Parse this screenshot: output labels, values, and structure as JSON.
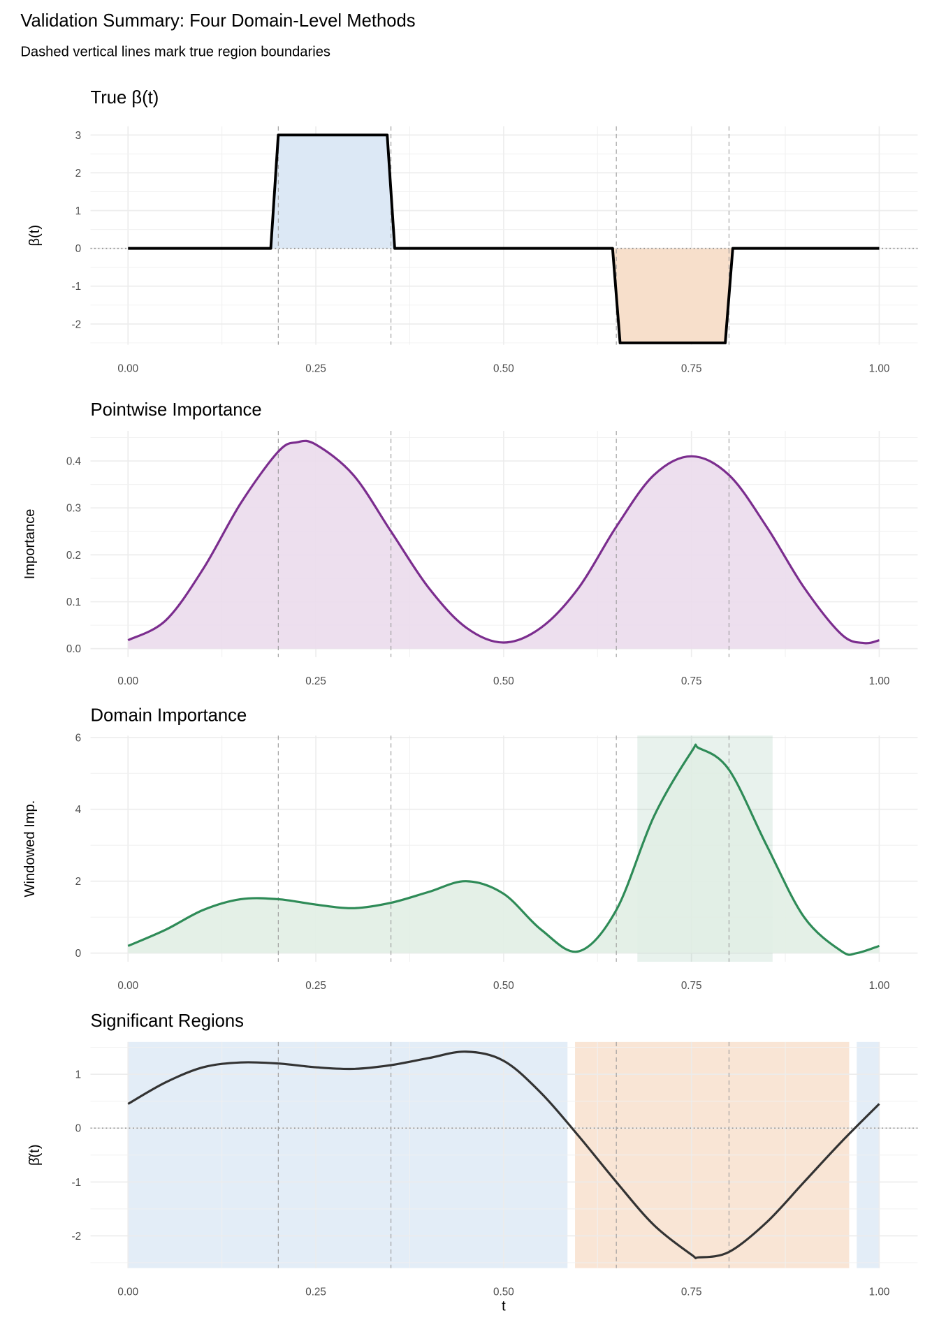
{
  "title": "Validation Summary: Four Domain-Level Methods",
  "subtitle": "Dashed vertical lines mark true region boundaries",
  "boundaries": [
    0.2,
    0.35,
    0.65,
    0.8
  ],
  "colors": {
    "blue_fill": "#dce8f5",
    "orange_fill": "#f7dfcb",
    "purple": "#7b2d8e",
    "green": "#2e8b57",
    "dark": "#333333"
  },
  "chart_data": [
    {
      "type": "line",
      "title": "True β(t)",
      "ylabel": "β(t)",
      "xlabel": "",
      "xlim": [
        0,
        1
      ],
      "ylim": [
        -2.55,
        3.23
      ],
      "x_ticks": [
        "0.00",
        "0.25",
        "0.50",
        "0.75",
        "1.00"
      ],
      "y_ticks": [
        "-2",
        "-1",
        "0",
        "1",
        "2",
        "3"
      ],
      "zero_line": true,
      "line_color": "#000000",
      "x": [
        0,
        0.19,
        0.2,
        0.345,
        0.355,
        0.645,
        0.655,
        0.795,
        0.805,
        1
      ],
      "y": [
        0,
        0,
        3,
        3,
        0,
        0,
        -2.5,
        -2.5,
        0,
        0
      ],
      "fills": [
        {
          "from": 0.19,
          "to": 0.355,
          "color": "#dce8f5"
        },
        {
          "from": 0.645,
          "to": 0.805,
          "color": "#f7dfcb"
        }
      ]
    },
    {
      "type": "area",
      "title": "Pointwise Importance",
      "ylabel": "Importance",
      "xlabel": "",
      "xlim": [
        0,
        1
      ],
      "ylim": [
        -0.018,
        0.464
      ],
      "x_ticks": [
        "0.00",
        "0.25",
        "0.50",
        "0.75",
        "1.00"
      ],
      "y_ticks": [
        "0.0",
        "0.1",
        "0.2",
        "0.3",
        "0.4"
      ],
      "line_color": "#7b2d8e",
      "fill_color": "#ebdcec",
      "x": [
        0,
        0.05,
        0.1,
        0.15,
        0.2,
        0.225,
        0.25,
        0.3,
        0.35,
        0.4,
        0.45,
        0.5,
        0.55,
        0.6,
        0.65,
        0.7,
        0.75,
        0.8,
        0.85,
        0.9,
        0.95,
        0.98,
        1
      ],
      "y": [
        0.018,
        0.06,
        0.17,
        0.31,
        0.42,
        0.44,
        0.435,
        0.37,
        0.25,
        0.13,
        0.045,
        0.013,
        0.045,
        0.13,
        0.26,
        0.37,
        0.41,
        0.37,
        0.26,
        0.13,
        0.03,
        0.012,
        0.018
      ]
    },
    {
      "type": "area",
      "title": "Domain Importance",
      "ylabel": "Windowed Imp.",
      "xlabel": "",
      "xlim": [
        0,
        1
      ],
      "ylim": [
        -0.24,
        6.05
      ],
      "x_ticks": [
        "0.00",
        "0.25",
        "0.50",
        "0.75",
        "1.00"
      ],
      "y_ticks": [
        "0",
        "2",
        "4",
        "6"
      ],
      "line_color": "#2e8b57",
      "fill_color": "#e1eee4",
      "highlight": [
        {
          "from": 0.678,
          "to": 0.858,
          "color": "#2e8b57"
        }
      ],
      "x": [
        0,
        0.05,
        0.1,
        0.15,
        0.2,
        0.25,
        0.3,
        0.35,
        0.4,
        0.45,
        0.5,
        0.55,
        0.6,
        0.65,
        0.7,
        0.75,
        0.76,
        0.8,
        0.85,
        0.9,
        0.95,
        0.97,
        1
      ],
      "y": [
        0.2,
        0.65,
        1.2,
        1.5,
        1.5,
        1.35,
        1.25,
        1.4,
        1.7,
        2.0,
        1.65,
        0.65,
        0.05,
        1.2,
        3.8,
        5.6,
        5.7,
        5.1,
        3.0,
        1.0,
        0.05,
        0.0,
        0.2
      ]
    },
    {
      "type": "line",
      "title": "Significant Regions",
      "ylabel": "β̂(t)",
      "xlabel": "t",
      "xlim": [
        0,
        1
      ],
      "ylim": [
        -2.6,
        1.6
      ],
      "x_ticks": [
        "0.00",
        "0.25",
        "0.50",
        "0.75",
        "1.00"
      ],
      "y_ticks": [
        "-2",
        "-1",
        "0",
        "1"
      ],
      "zero_line": true,
      "line_color": "#333333",
      "bands": [
        {
          "from": 0,
          "to": 0.585,
          "color": "#dce8f5"
        },
        {
          "from": 0.595,
          "to": 0.96,
          "color": "#f7dfcb"
        },
        {
          "from": 0.97,
          "to": 1,
          "color": "#dce8f5"
        }
      ],
      "x": [
        0,
        0.05,
        0.1,
        0.15,
        0.2,
        0.25,
        0.3,
        0.35,
        0.4,
        0.45,
        0.5,
        0.55,
        0.6,
        0.65,
        0.7,
        0.75,
        0.76,
        0.8,
        0.85,
        0.9,
        0.95,
        1
      ],
      "y": [
        0.45,
        0.85,
        1.13,
        1.22,
        1.2,
        1.13,
        1.1,
        1.17,
        1.3,
        1.42,
        1.25,
        0.65,
        -0.15,
        -1.0,
        -1.8,
        -2.35,
        -2.4,
        -2.3,
        -1.75,
        -1.0,
        -0.25,
        0.45
      ]
    }
  ]
}
